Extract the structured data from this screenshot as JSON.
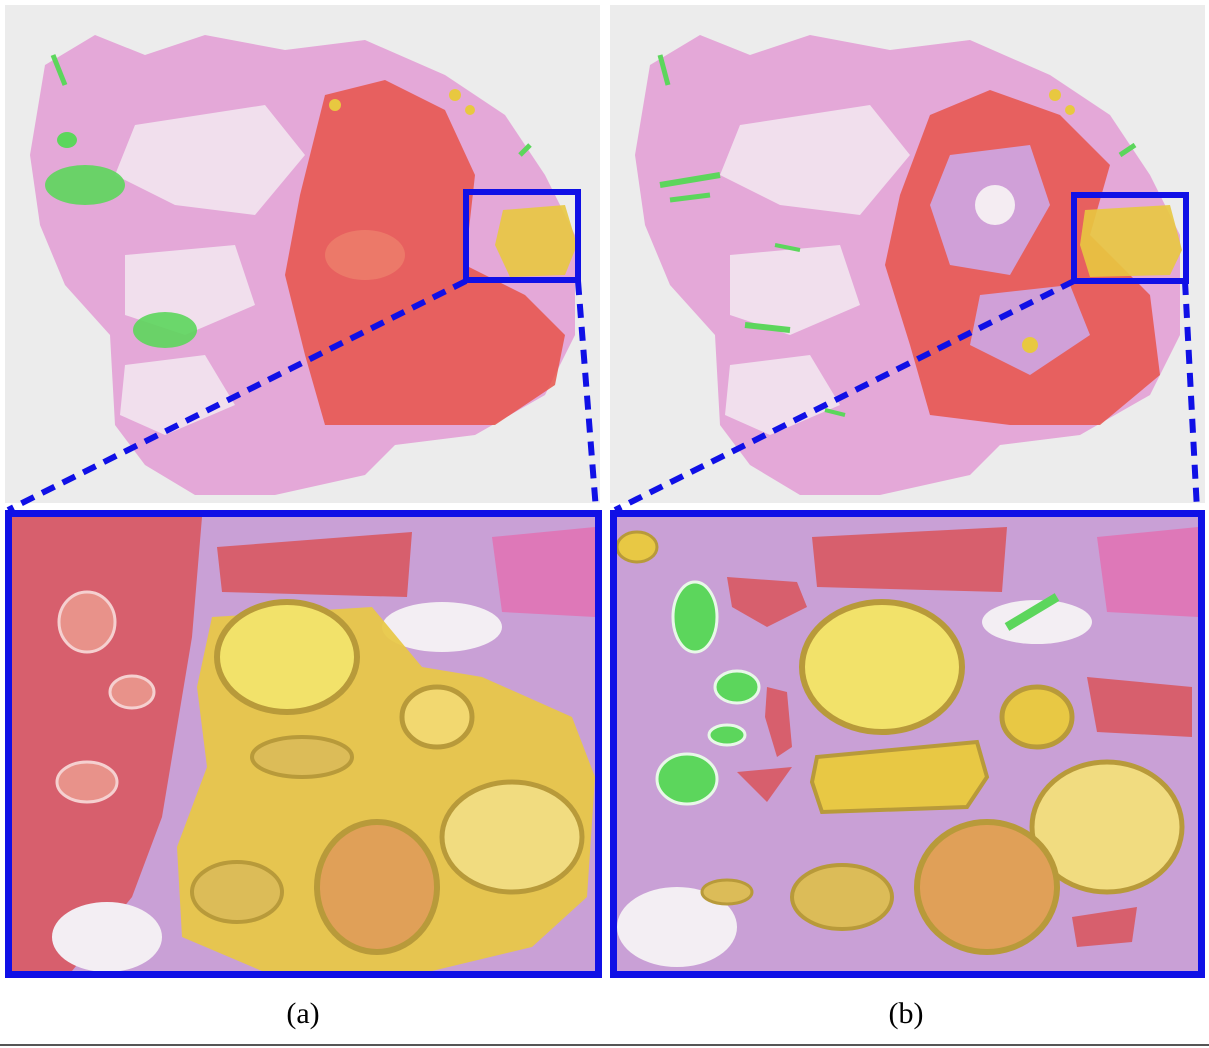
{
  "figure": {
    "panels": [
      {
        "caption": "(a)"
      },
      {
        "caption": "(b)"
      }
    ]
  },
  "colors": {
    "highlight_box": "#1010e6",
    "tumor_region": "#e8544a",
    "gland_region": "#e8c840",
    "normal_region": "#5cd65c",
    "tissue_stain": "#e2a6d6",
    "background": "#ececec"
  }
}
